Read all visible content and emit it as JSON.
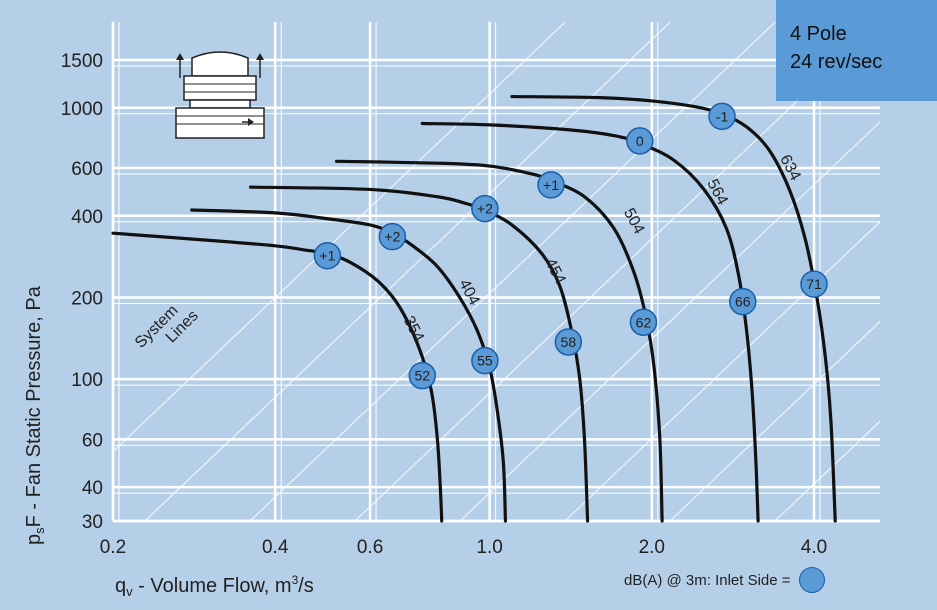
{
  "info_box": {
    "line1": "4 Pole",
    "line2": "24 rev/sec"
  },
  "legend_note": "dB(A) @ 3m:  Inlet Side =",
  "colors": {
    "background": "#b5cfe8",
    "grid": "#ffffff",
    "curve": "#111111",
    "marker_fill": "#5a9ad6",
    "marker_stroke": "#1a5fa8",
    "info_box": "#5a9ad6"
  },
  "icon": "roof-fan-icon",
  "chart_data": {
    "type": "line",
    "xlabel": "q_v - Volume Flow, m³/s",
    "ylabel": "p_sF - Fan Static Pressure, Pa",
    "x_scale": "log",
    "y_scale": "log",
    "xlim": [
      0.2,
      5.0
    ],
    "ylim": [
      30,
      1800
    ],
    "x_ticks": [
      {
        "value": 0.2,
        "label": "0.2"
      },
      {
        "value": 0.4,
        "label": "0.4"
      },
      {
        "value": 0.6,
        "label": "0.6"
      },
      {
        "value": 1.0,
        "label": "1.0"
      },
      {
        "value": 2.0,
        "label": "2.0"
      },
      {
        "value": 4.0,
        "label": "4.0"
      }
    ],
    "y_ticks": [
      {
        "value": 30,
        "label": "30"
      },
      {
        "value": 40,
        "label": "40"
      },
      {
        "value": 60,
        "label": "60"
      },
      {
        "value": 100,
        "label": "100"
      },
      {
        "value": 200,
        "label": "200"
      },
      {
        "value": 400,
        "label": "400"
      },
      {
        "value": 600,
        "label": "600"
      },
      {
        "value": 1000,
        "label": "1000"
      },
      {
        "value": 1500,
        "label": "1500"
      }
    ],
    "system_lines_label": [
      "System",
      "Lines"
    ],
    "series": [
      {
        "name": "354",
        "points": [
          [
            0.2,
            345
          ],
          [
            0.3,
            325
          ],
          [
            0.4,
            310
          ],
          [
            0.45,
            300
          ],
          [
            0.5,
            290
          ],
          [
            0.55,
            270
          ],
          [
            0.62,
            230
          ],
          [
            0.68,
            185
          ],
          [
            0.74,
            130
          ],
          [
            0.78,
            90
          ],
          [
            0.8,
            60
          ],
          [
            0.81,
            40
          ],
          [
            0.815,
            30
          ]
        ],
        "label_at": [
          0.71,
          150
        ],
        "markers": [
          {
            "x": 0.5,
            "y": 285,
            "label": "+1"
          },
          {
            "x": 0.75,
            "y": 103,
            "label": "52"
          }
        ]
      },
      {
        "name": "404",
        "points": [
          [
            0.28,
            420
          ],
          [
            0.4,
            410
          ],
          [
            0.5,
            390
          ],
          [
            0.6,
            370
          ],
          [
            0.66,
            345
          ],
          [
            0.72,
            310
          ],
          [
            0.8,
            260
          ],
          [
            0.88,
            200
          ],
          [
            0.95,
            150
          ],
          [
            1.0,
            110
          ],
          [
            1.03,
            80
          ],
          [
            1.06,
            50
          ],
          [
            1.07,
            30
          ]
        ],
        "label_at": [
          0.9,
          205
        ],
        "markers": [
          {
            "x": 0.66,
            "y": 335,
            "label": "+2"
          },
          {
            "x": 0.98,
            "y": 117,
            "label": "55"
          }
        ]
      },
      {
        "name": "454",
        "points": [
          [
            0.36,
            510
          ],
          [
            0.6,
            500
          ],
          [
            0.8,
            470
          ],
          [
            0.9,
            445
          ],
          [
            0.98,
            420
          ],
          [
            1.1,
            370
          ],
          [
            1.25,
            290
          ],
          [
            1.35,
            220
          ],
          [
            1.42,
            150
          ],
          [
            1.47,
            100
          ],
          [
            1.5,
            60
          ],
          [
            1.52,
            30
          ]
        ],
        "label_at": [
          1.3,
          245
        ],
        "markers": [
          {
            "x": 0.98,
            "y": 425,
            "label": "+2"
          },
          {
            "x": 1.4,
            "y": 137,
            "label": "58"
          }
        ]
      },
      {
        "name": "504",
        "points": [
          [
            0.52,
            635
          ],
          [
            0.8,
            625
          ],
          [
            1.0,
            610
          ],
          [
            1.2,
            570
          ],
          [
            1.3,
            540
          ],
          [
            1.5,
            470
          ],
          [
            1.7,
            360
          ],
          [
            1.85,
            250
          ],
          [
            1.95,
            170
          ],
          [
            2.02,
            110
          ],
          [
            2.07,
            60
          ],
          [
            2.09,
            30
          ]
        ],
        "label_at": [
          1.82,
          375
        ],
        "markers": [
          {
            "x": 1.3,
            "y": 520,
            "label": "+1"
          },
          {
            "x": 1.93,
            "y": 162,
            "label": "62"
          }
        ]
      },
      {
        "name": "564",
        "points": [
          [
            0.75,
            875
          ],
          [
            1.0,
            865
          ],
          [
            1.4,
            830
          ],
          [
            1.7,
            790
          ],
          [
            1.9,
            740
          ],
          [
            2.2,
            640
          ],
          [
            2.5,
            500
          ],
          [
            2.75,
            360
          ],
          [
            2.9,
            240
          ],
          [
            3.0,
            150
          ],
          [
            3.07,
            90
          ],
          [
            3.12,
            50
          ],
          [
            3.15,
            30
          ]
        ],
        "label_at": [
          2.6,
          480
        ],
        "markers": [
          {
            "x": 1.9,
            "y": 755,
            "label": "0"
          },
          {
            "x": 2.95,
            "y": 193,
            "label": "66"
          }
        ]
      },
      {
        "name": "634",
        "points": [
          [
            1.1,
            1100
          ],
          [
            1.6,
            1090
          ],
          [
            2.0,
            1060
          ],
          [
            2.4,
            1010
          ],
          [
            2.7,
            950
          ],
          [
            3.0,
            850
          ],
          [
            3.3,
            700
          ],
          [
            3.6,
            500
          ],
          [
            3.85,
            330
          ],
          [
            4.05,
            200
          ],
          [
            4.2,
            120
          ],
          [
            4.3,
            70
          ],
          [
            4.38,
            30
          ]
        ],
        "label_at": [
          3.55,
          590
        ],
        "markers": [
          {
            "x": 2.7,
            "y": 930,
            "label": "-1"
          },
          {
            "x": 4.0,
            "y": 224,
            "label": "71"
          }
        ]
      }
    ]
  }
}
